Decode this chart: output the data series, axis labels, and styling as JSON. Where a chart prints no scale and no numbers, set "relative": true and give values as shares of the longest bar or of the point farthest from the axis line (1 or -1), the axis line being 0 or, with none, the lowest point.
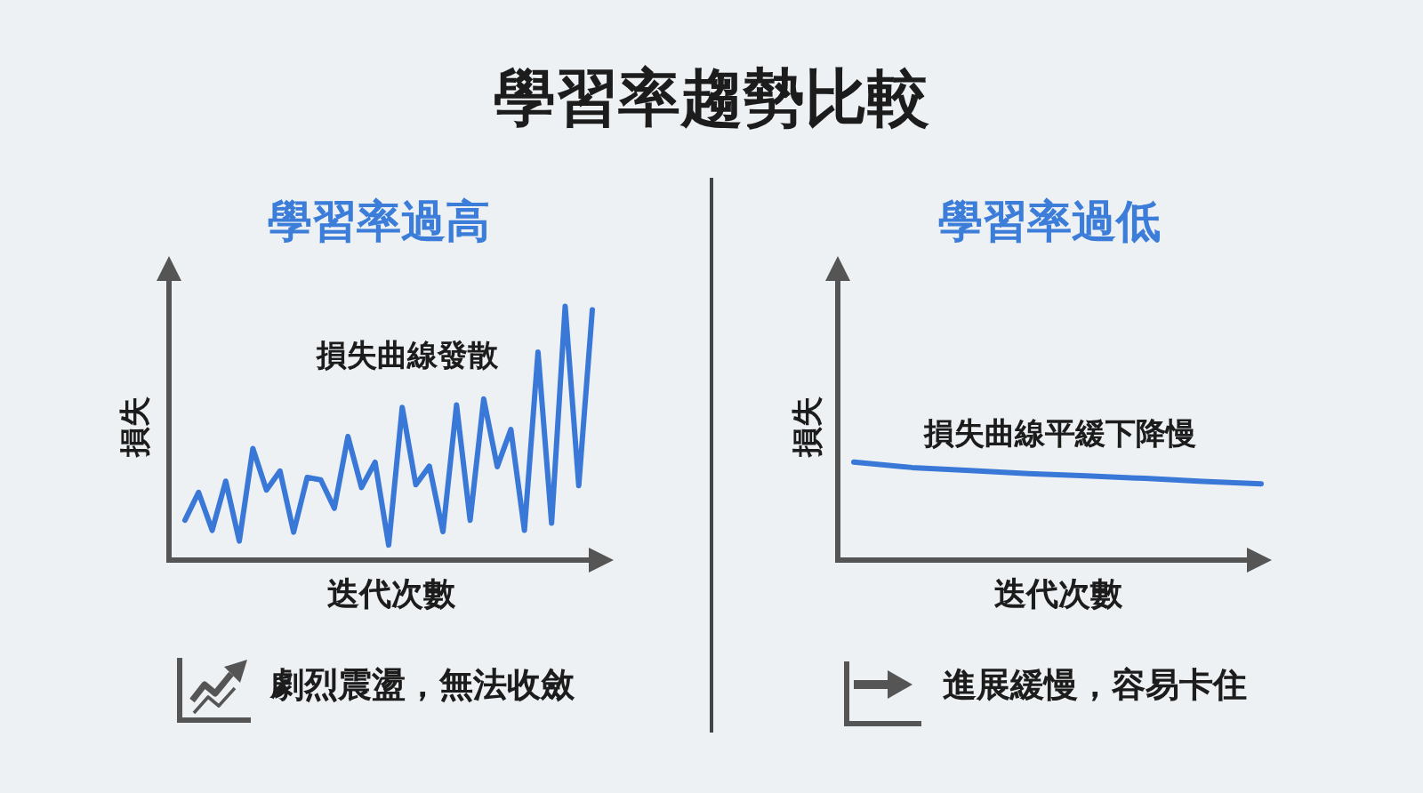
{
  "chart_data": [
    {
      "type": "other",
      "title": "學習率趨勢比較"
    },
    {
      "type": "line",
      "title": "學習率過高",
      "xlabel": "迭代次數",
      "ylabel": "損失",
      "relative": true,
      "categories": [
        null,
        null,
        null,
        null,
        null,
        null,
        null,
        null,
        null,
        null,
        null,
        null,
        null,
        null,
        null,
        null,
        null,
        null,
        null,
        null,
        null,
        null,
        null,
        null,
        null,
        null,
        null,
        null,
        null,
        null,
        null
      ],
      "series": [
        {
          "color": "#3a78d8",
          "values": [
            0.157,
            0.267,
            0.117,
            0.311,
            0.075,
            0.44,
            0.276,
            0.351,
            0.11,
            0.326,
            0.316,
            0.204,
            0.487,
            0.286,
            0.386,
            0.059,
            0.602,
            0.297,
            0.37,
            0.112,
            0.611,
            0.157,
            0.635,
            0.368,
            0.515,
            0.117,
            0.82,
            0.145,
            1,
            0.293,
            0.986
          ]
        }
      ],
      "annotations": [
        "損失曲線發散",
        "劇烈震盪，無法收斂"
      ]
    },
    {
      "type": "line",
      "title": "學習率過低",
      "xlabel": "迭代次數",
      "ylabel": "損失",
      "relative": true,
      "categories": [
        null,
        null,
        null,
        null,
        null,
        null,
        null,
        null
      ],
      "series": [
        {
          "color": "#3a78d8",
          "values": [
            1,
            0.945,
            0.914,
            0.883,
            0.859,
            0.834,
            0.804,
            0.779
          ]
        }
      ],
      "annotations": [
        "損失曲線平緩下降慢",
        "進展緩慢，容易卡住"
      ]
    }
  ]
}
